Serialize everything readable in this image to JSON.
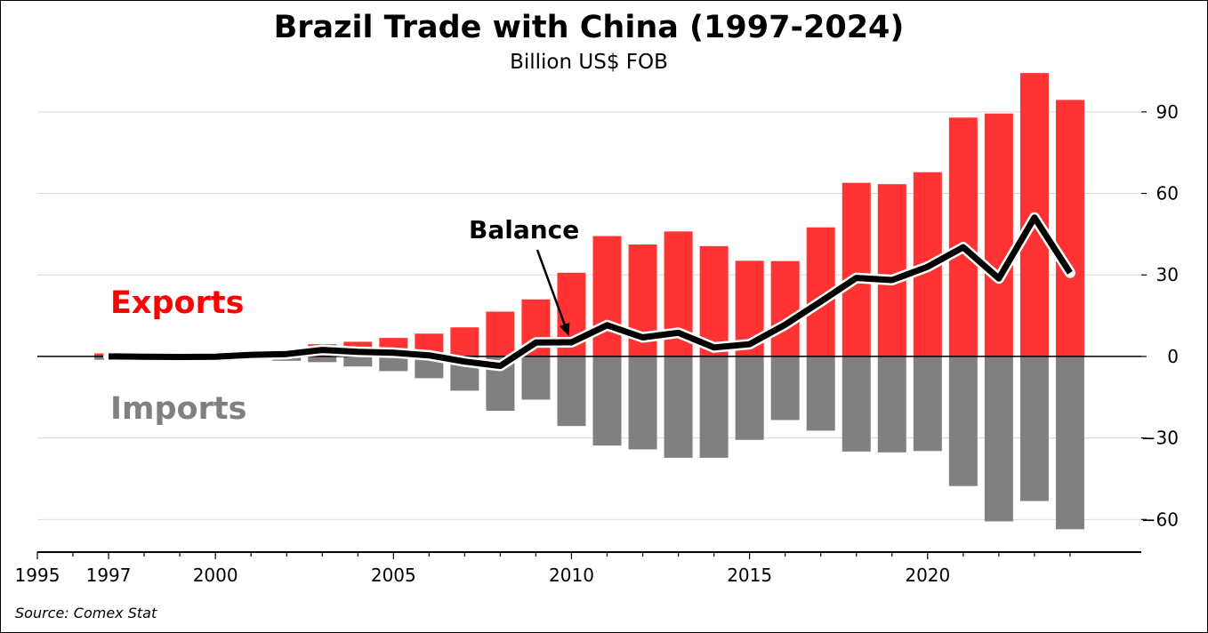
{
  "chart_data": {
    "type": "bar",
    "title": "Brazil Trade with China (1997-2024)",
    "subtitle": "Billion US$ FOB",
    "source": "Source: Comex Stat",
    "x": [
      1997,
      1998,
      1999,
      2000,
      2001,
      2002,
      2003,
      2004,
      2005,
      2006,
      2007,
      2008,
      2009,
      2010,
      2011,
      2012,
      2013,
      2014,
      2015,
      2016,
      2017,
      2018,
      2019,
      2020,
      2021,
      2022,
      2023,
      2024
    ],
    "series": [
      {
        "name": "Exports",
        "type": "bar",
        "color": "#ff3333",
        "values": [
          1.1,
          0.9,
          0.7,
          1.1,
          1.9,
          2.5,
          4.5,
          5.4,
          6.8,
          8.4,
          10.7,
          16.5,
          21.0,
          30.8,
          44.3,
          41.2,
          46.0,
          40.6,
          35.2,
          35.1,
          47.5,
          63.9,
          63.4,
          67.8,
          87.9,
          89.4,
          104.3,
          94.4
        ]
      },
      {
        "name": "Imports",
        "type": "bar",
        "color": "#808080",
        "values": [
          -1.2,
          -1.0,
          -0.9,
          -1.2,
          -1.3,
          -1.6,
          -2.1,
          -3.7,
          -5.4,
          -8.0,
          -12.6,
          -20.0,
          -15.9,
          -25.6,
          -32.8,
          -34.2,
          -37.3,
          -37.3,
          -30.7,
          -23.4,
          -27.3,
          -35.0,
          -35.3,
          -34.8,
          -47.7,
          -60.7,
          -53.2,
          -63.6
        ]
      },
      {
        "name": "Balance",
        "type": "line",
        "color": "#000000",
        "values": [
          0.0,
          -0.1,
          -0.2,
          -0.1,
          0.6,
          0.9,
          2.4,
          1.7,
          1.4,
          0.4,
          -1.9,
          -3.5,
          5.1,
          5.2,
          11.5,
          7.0,
          8.7,
          3.3,
          4.5,
          11.7,
          20.2,
          28.9,
          28.1,
          33.0,
          40.2,
          28.7,
          51.1,
          30.8
        ]
      }
    ],
    "legend_labels": {
      "exports": "Exports",
      "imports": "Imports",
      "balance": "Balance"
    },
    "label_colors": {
      "exports": "#ff0000",
      "imports": "#808080"
    },
    "xlim": [
      1995,
      2026
    ],
    "ylim": [
      -72,
      105
    ],
    "x_ticks": [
      1995,
      1997,
      2000,
      2005,
      2010,
      2015,
      2020
    ],
    "y_ticks": [
      -60,
      -30,
      0,
      30,
      60,
      90
    ],
    "y_axis_side": "right",
    "grid": "horizontal",
    "balance_annotation_year": 2010
  }
}
